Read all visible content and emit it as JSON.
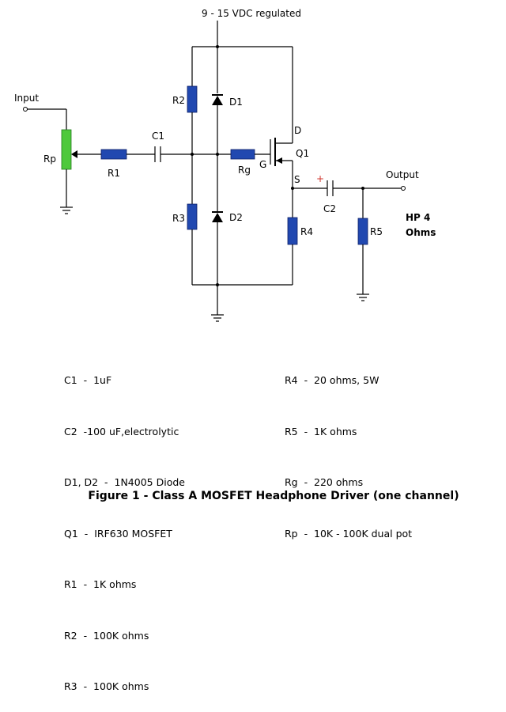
{
  "diagram": {
    "supply_label": "9 - 15 VDC regulated",
    "input_label": "Input",
    "output_label": "Output",
    "load_label_line1": "HP 4",
    "load_label_line2": "Ohms",
    "components": {
      "rp": "Rp",
      "r1": "R1",
      "c1": "C1",
      "r2": "R2",
      "d1": "D1",
      "r3": "R3",
      "d2": "D2",
      "rg": "Rg",
      "q1": "Q1",
      "drain": "D",
      "gate": "G",
      "source": "S",
      "c2": "C2",
      "c2_polarity": "+",
      "r4": "R4",
      "r5": "R5"
    },
    "colors": {
      "resistor": "#2148b0",
      "potentiometer": "#4ec93c",
      "polarity_mark": "#d0342c"
    }
  },
  "parts_list": {
    "left": [
      "C1  -  1uF",
      "C2  -100 uF,electrolytic",
      "D1, D2  -  1N4005 Diode",
      "Q1  -  IRF630 MOSFET",
      "R1  -  1K ohms",
      "R2  -  100K ohms",
      "R3  -  100K ohms"
    ],
    "right": [
      "R4  -  20 ohms, 5W",
      "R5  -  1K ohms",
      "Rg  -  220 ohms",
      "Rp  -  10K - 100K dual pot"
    ]
  },
  "caption": "Figure 1 - Class A MOSFET Headphone Driver (one channel)"
}
